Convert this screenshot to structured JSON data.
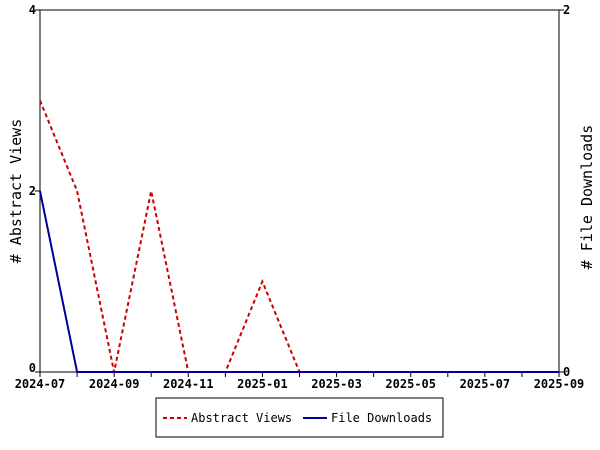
{
  "chart_data": {
    "type": "line",
    "x": [
      "2024-07",
      "2024-08",
      "2024-09",
      "2024-10",
      "2024-11",
      "2024-12",
      "2025-01",
      "2025-02",
      "2025-03",
      "2025-04",
      "2025-05",
      "2025-06",
      "2025-07",
      "2025-08",
      "2025-09"
    ],
    "x_ticks": [
      "2024-07",
      "2024-09",
      "2024-11",
      "2025-01",
      "2025-03",
      "2025-05",
      "2025-07",
      "2025-09"
    ],
    "y_left": {
      "label": "# Abstract Views",
      "range": [
        0,
        4
      ],
      "ticks": [
        "0",
        "2",
        "4"
      ]
    },
    "y_right": {
      "label": "# File Downloads",
      "range": [
        0,
        2
      ],
      "ticks": [
        "0",
        "2"
      ]
    },
    "series": [
      {
        "name": "Abstract Views",
        "axis": "left",
        "color": "#cc0000",
        "style": "dashed",
        "values": [
          3,
          2,
          0,
          2,
          0,
          0,
          1,
          0,
          0,
          0,
          0,
          0,
          0,
          0,
          0
        ]
      },
      {
        "name": "File Downloads",
        "axis": "right",
        "color": "#000099",
        "style": "solid",
        "values": [
          1,
          0,
          0,
          0,
          0,
          0,
          0,
          0,
          0,
          0,
          0,
          0,
          0,
          0,
          0
        ]
      }
    ],
    "grid": false,
    "legend": "bottom-center"
  }
}
